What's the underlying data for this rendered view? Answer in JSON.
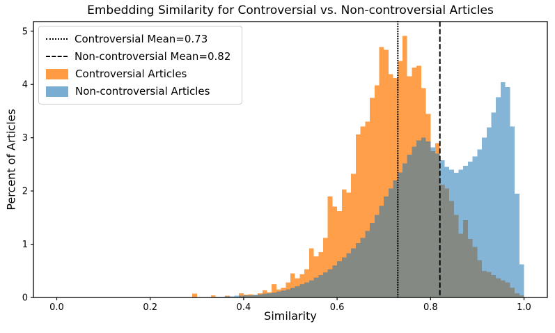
{
  "chart_data": {
    "type": "histogram",
    "title": "Embedding Similarity for Controversial vs. Non-controversial Articles",
    "xlabel": "Similarity",
    "ylabel": "Percent of Articles",
    "xlim": [
      -0.05,
      1.05
    ],
    "ylim": [
      0,
      5.18
    ],
    "x_ticks": [
      "0.0",
      "0.2",
      "0.4",
      "0.6",
      "0.8",
      "1.0"
    ],
    "y_ticks": [
      "0",
      "1",
      "2",
      "3",
      "4",
      "5"
    ],
    "grid": false,
    "legend_position": "upper left",
    "bin_start": 0.28,
    "bin_width": 0.01,
    "series": [
      {
        "name": "Controversial Articles",
        "color": "#ff7f0e",
        "opacity": 0.75,
        "mean": 0.73,
        "mean_line_style": "dotted",
        "values": [
          0,
          0.07,
          0,
          0,
          0,
          0.04,
          0,
          0,
          0.03,
          0,
          0,
          0.08,
          0.05,
          0.06,
          0.04,
          0.08,
          0.14,
          0.1,
          0.25,
          0.15,
          0.18,
          0.28,
          0.45,
          0.36,
          0.44,
          0.53,
          0.92,
          0.77,
          0.85,
          1.12,
          1.9,
          1.71,
          1.62,
          2.03,
          1.97,
          2.32,
          3.06,
          3.21,
          3.3,
          3.75,
          3.98,
          4.7,
          4.65,
          4.19,
          4.12,
          4.44,
          4.91,
          4.15,
          4.32,
          4.35,
          3.93,
          3.45,
          2.75,
          2.9,
          2.12,
          2.05,
          1.81,
          1.55,
          1.2,
          1.45,
          1.1,
          0.95,
          0.7,
          0.5,
          0.48,
          0.42,
          0.36,
          0.32,
          0.28,
          0.18,
          0.08,
          0.04
        ]
      },
      {
        "name": "Non-controversial Articles",
        "color": "#1f77b4",
        "opacity": 0.55,
        "mean": 0.82,
        "mean_line_style": "dashed",
        "values": [
          0,
          0,
          0,
          0,
          0,
          0,
          0.01,
          0.01,
          0.02,
          0.02,
          0.03,
          0.03,
          0.04,
          0.04,
          0.05,
          0.06,
          0.07,
          0.08,
          0.09,
          0.11,
          0.13,
          0.15,
          0.18,
          0.21,
          0.25,
          0.28,
          0.32,
          0.37,
          0.42,
          0.47,
          0.53,
          0.6,
          0.68,
          0.75,
          0.83,
          0.92,
          1.02,
          1.12,
          1.25,
          1.4,
          1.55,
          1.72,
          1.9,
          2.05,
          2.2,
          2.35,
          2.52,
          2.68,
          2.83,
          2.95,
          3.0,
          2.93,
          2.82,
          2.7,
          2.58,
          2.45,
          2.4,
          2.34,
          2.4,
          2.47,
          2.55,
          2.65,
          2.78,
          3.0,
          3.19,
          3.47,
          3.76,
          4.04,
          3.95,
          3.21,
          1.95,
          0.62
        ]
      }
    ],
    "legend": [
      {
        "swatch": "dotted-line",
        "label": "Controversial Mean=0.73"
      },
      {
        "swatch": "dashed-line",
        "label": "Non-controversial Mean=0.82"
      },
      {
        "swatch": "orange-patch",
        "label": "Controversial Articles"
      },
      {
        "swatch": "blue-patch",
        "label": "Non-controversial Articles"
      }
    ]
  }
}
